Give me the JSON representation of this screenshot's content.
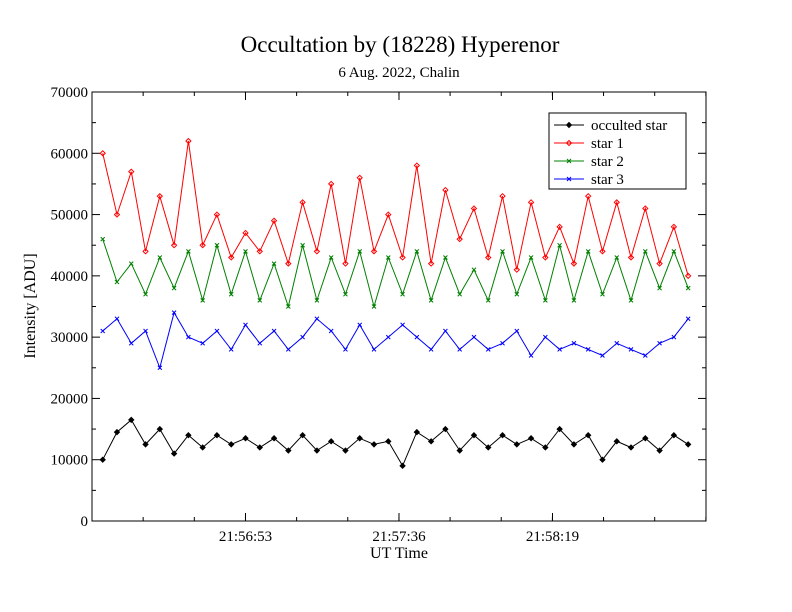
{
  "chart_data": {
    "type": "line",
    "title": "Occultation by (18228) Hyperenor",
    "subtitle": "6 Aug. 2022, Chalin",
    "xlabel": "UT Time",
    "ylabel": "Intensity [ADU]",
    "xlim": [
      0,
      172
    ],
    "ylim": [
      0,
      70000
    ],
    "y_ticks": [
      "0",
      "10000",
      "20000",
      "30000",
      "40000",
      "50000",
      "60000",
      "70000"
    ],
    "x_ticks": [
      {
        "x": 43,
        "label": "21:56:53"
      },
      {
        "x": 86,
        "label": "21:57:36"
      },
      {
        "x": 129,
        "label": "21:58:19"
      }
    ],
    "grid": false,
    "legend_position": "top-right",
    "series": [
      {
        "name": "occulted star",
        "color": "#000000",
        "marker": "diamond-filled",
        "x": [
          3,
          7,
          11,
          15,
          19,
          23,
          27,
          31,
          35,
          39,
          43,
          47,
          51,
          55,
          59,
          63,
          67,
          71,
          75,
          79,
          83,
          87,
          91,
          95,
          99,
          103,
          107,
          111,
          115,
          119,
          123,
          127,
          131,
          135,
          139,
          143,
          147,
          151,
          155,
          159,
          163,
          167
        ],
        "values": [
          10000,
          14500,
          16500,
          12500,
          15000,
          11000,
          14000,
          12000,
          14000,
          12500,
          13500,
          12000,
          13500,
          11500,
          14000,
          11500,
          13000,
          11500,
          13500,
          12500,
          13000,
          9000,
          14500,
          13000,
          15000,
          11500,
          14000,
          12000,
          14000,
          12500,
          13500,
          12000,
          15000,
          12500,
          14000,
          10000,
          13000,
          12000,
          13500,
          11500,
          14000,
          12500
        ]
      },
      {
        "name": "star 1",
        "color": "#ff0000",
        "marker": "diamond-open",
        "x": [
          3,
          7,
          11,
          15,
          19,
          23,
          27,
          31,
          35,
          39,
          43,
          47,
          51,
          55,
          59,
          63,
          67,
          71,
          75,
          79,
          83,
          87,
          91,
          95,
          99,
          103,
          107,
          111,
          115,
          119,
          123,
          127,
          131,
          135,
          139,
          143,
          147,
          151,
          155,
          159,
          163,
          167
        ],
        "values": [
          60000,
          50000,
          57000,
          44000,
          53000,
          45000,
          62000,
          45000,
          50000,
          43000,
          47000,
          44000,
          49000,
          42000,
          52000,
          44000,
          55000,
          42000,
          56000,
          44000,
          50000,
          43000,
          58000,
          42000,
          54000,
          46000,
          51000,
          43000,
          53000,
          41000,
          52000,
          43000,
          48000,
          42000,
          53000,
          44000,
          52000,
          43000,
          51000,
          42000,
          48000,
          40000
        ]
      },
      {
        "name": "star 2",
        "color": "#008000",
        "marker": "x",
        "x": [
          3,
          7,
          11,
          15,
          19,
          23,
          27,
          31,
          35,
          39,
          43,
          47,
          51,
          55,
          59,
          63,
          67,
          71,
          75,
          79,
          83,
          87,
          91,
          95,
          99,
          103,
          107,
          111,
          115,
          119,
          123,
          127,
          131,
          135,
          139,
          143,
          147,
          151,
          155,
          159,
          163,
          167
        ],
        "values": [
          46000,
          39000,
          42000,
          37000,
          43000,
          38000,
          44000,
          36000,
          45000,
          37000,
          44000,
          36000,
          42000,
          35000,
          45000,
          36000,
          43000,
          37000,
          44000,
          35000,
          43000,
          37000,
          44000,
          36000,
          43000,
          37000,
          41000,
          36000,
          44000,
          37000,
          43000,
          36000,
          45000,
          36000,
          44000,
          37000,
          43000,
          36000,
          44000,
          38000,
          44000,
          38000
        ]
      },
      {
        "name": "star 3",
        "color": "#0000ff",
        "marker": "x",
        "x": [
          3,
          7,
          11,
          15,
          19,
          23,
          27,
          31,
          35,
          39,
          43,
          47,
          51,
          55,
          59,
          63,
          67,
          71,
          75,
          79,
          83,
          87,
          91,
          95,
          99,
          103,
          107,
          111,
          115,
          119,
          123,
          127,
          131,
          135,
          139,
          143,
          147,
          151,
          155,
          159,
          163,
          167
        ],
        "values": [
          31000,
          33000,
          29000,
          31000,
          25000,
          34000,
          30000,
          29000,
          31000,
          28000,
          32000,
          29000,
          31000,
          28000,
          30000,
          33000,
          31000,
          28000,
          32000,
          28000,
          30000,
          32000,
          30000,
          28000,
          31000,
          28000,
          30000,
          28000,
          29000,
          31000,
          27000,
          30000,
          28000,
          29000,
          28000,
          27000,
          29000,
          28000,
          27000,
          29000,
          30000,
          33000
        ]
      }
    ]
  }
}
